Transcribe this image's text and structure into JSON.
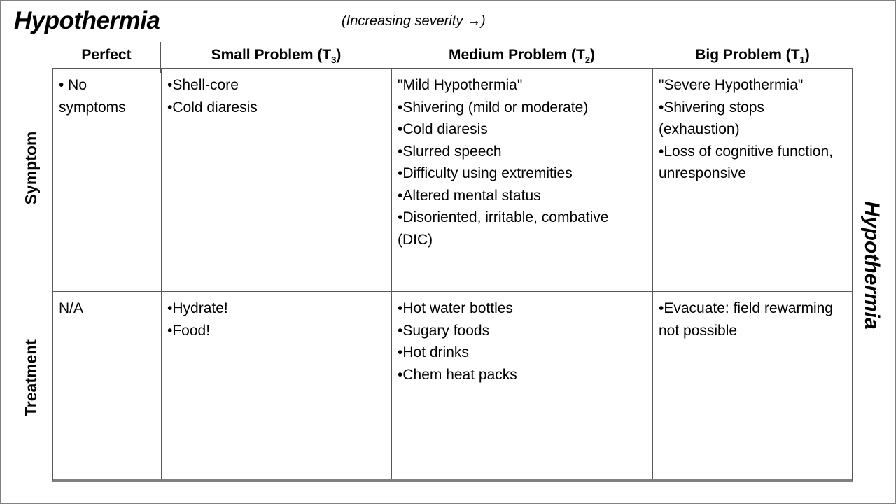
{
  "slide": {
    "title": "Hypothermia",
    "severity_note": "(Increasing severity →)",
    "right_side_label": "Hypothermia"
  },
  "table": {
    "columns": [
      {
        "label": "Perfect",
        "sub": "",
        "suffix": ""
      },
      {
        "label": "Small Problem (T",
        "sub": "3",
        "suffix": ")"
      },
      {
        "label": "Medium Problem (T",
        "sub": "2",
        "suffix": ")"
      },
      {
        "label": "Big Problem (T",
        "sub": "1",
        "suffix": ")"
      }
    ],
    "rows": [
      {
        "label": "Symptom",
        "cells": [
          {
            "lines": [
              "• No symptoms"
            ]
          },
          {
            "lines": [
              "•Shell-core",
              "•Cold diaresis"
            ]
          },
          {
            "lines": [
              "\"Mild Hypothermia\"",
              "•Shivering (mild or moderate)",
              "•Cold diaresis",
              "•Slurred speech",
              "•Difficulty using extremities",
              "•Altered mental status",
              "•Disoriented, irritable, combative (DIC)"
            ]
          },
          {
            "lines": [
              "\"Severe Hypothermia\"",
              "•Shivering stops (exhaustion)",
              "•Loss of cognitive function, unresponsive"
            ]
          }
        ]
      },
      {
        "label": "Treatment",
        "cells": [
          {
            "lines": [
              "N/A"
            ]
          },
          {
            "lines": [
              "•Hydrate!",
              "•Food!"
            ]
          },
          {
            "lines": [
              "•Hot water bottles",
              "•Sugary foods",
              "•Hot drinks",
              "•Chem heat packs"
            ]
          },
          {
            "lines": [
              "•Evacuate: field rewarming not possible"
            ]
          }
        ]
      }
    ]
  },
  "colors": {
    "text": "#000000",
    "table_border": "#595959",
    "frame_border": "#808080",
    "background": "#ffffff"
  }
}
